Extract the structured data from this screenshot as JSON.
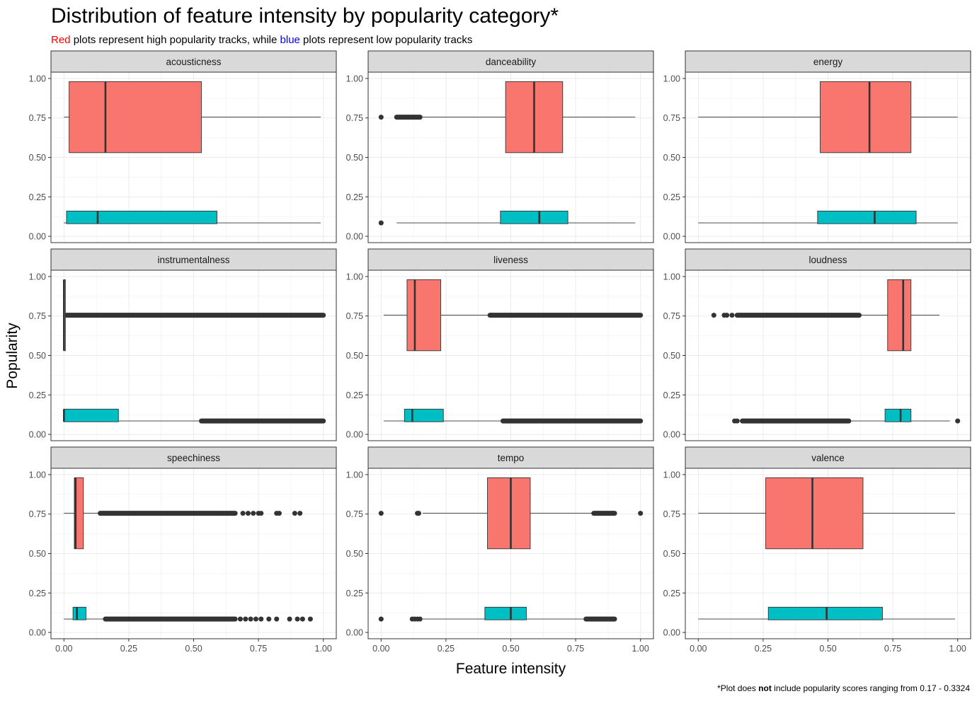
{
  "chart_data": {
    "type": "boxplot",
    "title": "Distribution of feature intensity by popularity category*",
    "subtitle": {
      "red_word": "Red",
      "middle": " plots represent high popularity tracks, while ",
      "blue_word": "blue",
      "end": " plots represent low popularity tracks"
    },
    "xlabel": "Feature intensity",
    "ylabel": "Popularity",
    "caption": {
      "pre": "*Plot does ",
      "bold": "not",
      "post": " include popularity scores ranging from 0.17 - 0.3324"
    },
    "xlim": [
      -0.05,
      1.05
    ],
    "ylim": [
      -0.04,
      1.04
    ],
    "x_ticks": [
      "0.00",
      "0.25",
      "0.50",
      "0.75",
      "1.00"
    ],
    "y_ticks": [
      "0.00",
      "0.25",
      "0.50",
      "0.75",
      "1.00"
    ],
    "grid": true,
    "colors": {
      "high": "#F8766D",
      "low": "#00BFC4",
      "outlier": "#333333",
      "strip": "#D9D9D9"
    },
    "box_bands": {
      "high": [
        0.53,
        0.98
      ],
      "low": [
        0.08,
        0.16
      ]
    },
    "box_center_y": {
      "high": 0.755,
      "low": 0.085
    },
    "panels": [
      {
        "name": "acousticness",
        "high": {
          "whisker_low": 0.0,
          "q1": 0.02,
          "median": 0.16,
          "q3": 0.53,
          "whisker_high": 0.99,
          "outliers": []
        },
        "low": {
          "whisker_low": 0.0,
          "q1": 0.01,
          "median": 0.13,
          "q3": 0.59,
          "whisker_high": 0.99,
          "outliers": []
        }
      },
      {
        "name": "danceability",
        "high": {
          "whisker_low": 0.16,
          "q1": 0.48,
          "median": 0.59,
          "q3": 0.7,
          "whisker_high": 0.98,
          "outliers": [
            0.0
          ],
          "outlier_range": [
            0.06,
            0.15
          ]
        },
        "low": {
          "whisker_low": 0.06,
          "q1": 0.46,
          "median": 0.61,
          "q3": 0.72,
          "whisker_high": 0.98,
          "outliers": [
            0.0
          ]
        }
      },
      {
        "name": "energy",
        "high": {
          "whisker_low": 0.0,
          "q1": 0.47,
          "median": 0.66,
          "q3": 0.82,
          "whisker_high": 1.0,
          "outliers": []
        },
        "low": {
          "whisker_low": 0.0,
          "q1": 0.46,
          "median": 0.68,
          "q3": 0.84,
          "whisker_high": 1.0,
          "outliers": []
        }
      },
      {
        "name": "instrumentalness",
        "high": {
          "whisker_low": 0.0,
          "q1": 0.0,
          "median": 0.0,
          "q3": 0.005,
          "whisker_high": 0.01,
          "outliers": [],
          "outlier_range": [
            0.01,
            1.0
          ]
        },
        "low": {
          "whisker_low": 0.0,
          "q1": 0.0,
          "median": 0.0,
          "q3": 0.21,
          "whisker_high": 0.53,
          "outliers": [],
          "outlier_range": [
            0.53,
            1.0
          ]
        }
      },
      {
        "name": "liveness",
        "high": {
          "whisker_low": 0.01,
          "q1": 0.1,
          "median": 0.13,
          "q3": 0.23,
          "whisker_high": 0.42,
          "outliers": [],
          "outlier_range": [
            0.42,
            1.0
          ]
        },
        "low": {
          "whisker_low": 0.01,
          "q1": 0.09,
          "median": 0.12,
          "q3": 0.24,
          "whisker_high": 0.47,
          "outliers": [],
          "outlier_range": [
            0.47,
            1.0
          ]
        }
      },
      {
        "name": "loudness",
        "high": {
          "whisker_low": 0.62,
          "q1": 0.73,
          "median": 0.79,
          "q3": 0.82,
          "whisker_high": 0.93,
          "outliers": [
            0.06,
            0.1,
            0.11,
            0.13
          ],
          "outlier_range": [
            0.15,
            0.62
          ]
        },
        "low": {
          "whisker_low": 0.58,
          "q1": 0.72,
          "median": 0.78,
          "q3": 0.82,
          "whisker_high": 0.97,
          "outliers": [
            0.14,
            0.15,
            1.0
          ],
          "outlier_range": [
            0.17,
            0.58
          ]
        }
      },
      {
        "name": "speechiness",
        "high": {
          "whisker_low": 0.0,
          "q1": 0.04,
          "median": 0.045,
          "q3": 0.075,
          "whisker_high": 0.14,
          "outliers": [
            0.69,
            0.71,
            0.73,
            0.75,
            0.76,
            0.82,
            0.83,
            0.89,
            0.91
          ],
          "outlier_range": [
            0.14,
            0.66
          ]
        },
        "low": {
          "whisker_low": 0.0,
          "q1": 0.035,
          "median": 0.05,
          "q3": 0.085,
          "whisker_high": 0.16,
          "outliers": [
            0.68,
            0.7,
            0.72,
            0.74,
            0.76,
            0.79,
            0.82,
            0.87,
            0.9,
            0.92,
            0.95
          ],
          "outlier_range": [
            0.16,
            0.66
          ]
        }
      },
      {
        "name": "tempo",
        "high": {
          "whisker_low": 0.16,
          "q1": 0.41,
          "median": 0.5,
          "q3": 0.575,
          "whisker_high": 0.82,
          "outliers": [
            0.0,
            0.14,
            0.145,
            1.0
          ],
          "outlier_range": [
            0.82,
            0.9
          ]
        },
        "low": {
          "whisker_low": 0.16,
          "q1": 0.4,
          "median": 0.5,
          "q3": 0.56,
          "whisker_high": 0.79,
          "outliers": [
            0.0,
            0.12,
            0.13,
            0.14,
            0.15
          ],
          "outlier_range": [
            0.79,
            0.9
          ]
        }
      },
      {
        "name": "valence",
        "high": {
          "whisker_low": 0.0,
          "q1": 0.26,
          "median": 0.44,
          "q3": 0.635,
          "whisker_high": 0.99,
          "outliers": []
        },
        "low": {
          "whisker_low": 0.0,
          "q1": 0.27,
          "median": 0.495,
          "q3": 0.71,
          "whisker_high": 0.99,
          "outliers": []
        }
      }
    ]
  }
}
